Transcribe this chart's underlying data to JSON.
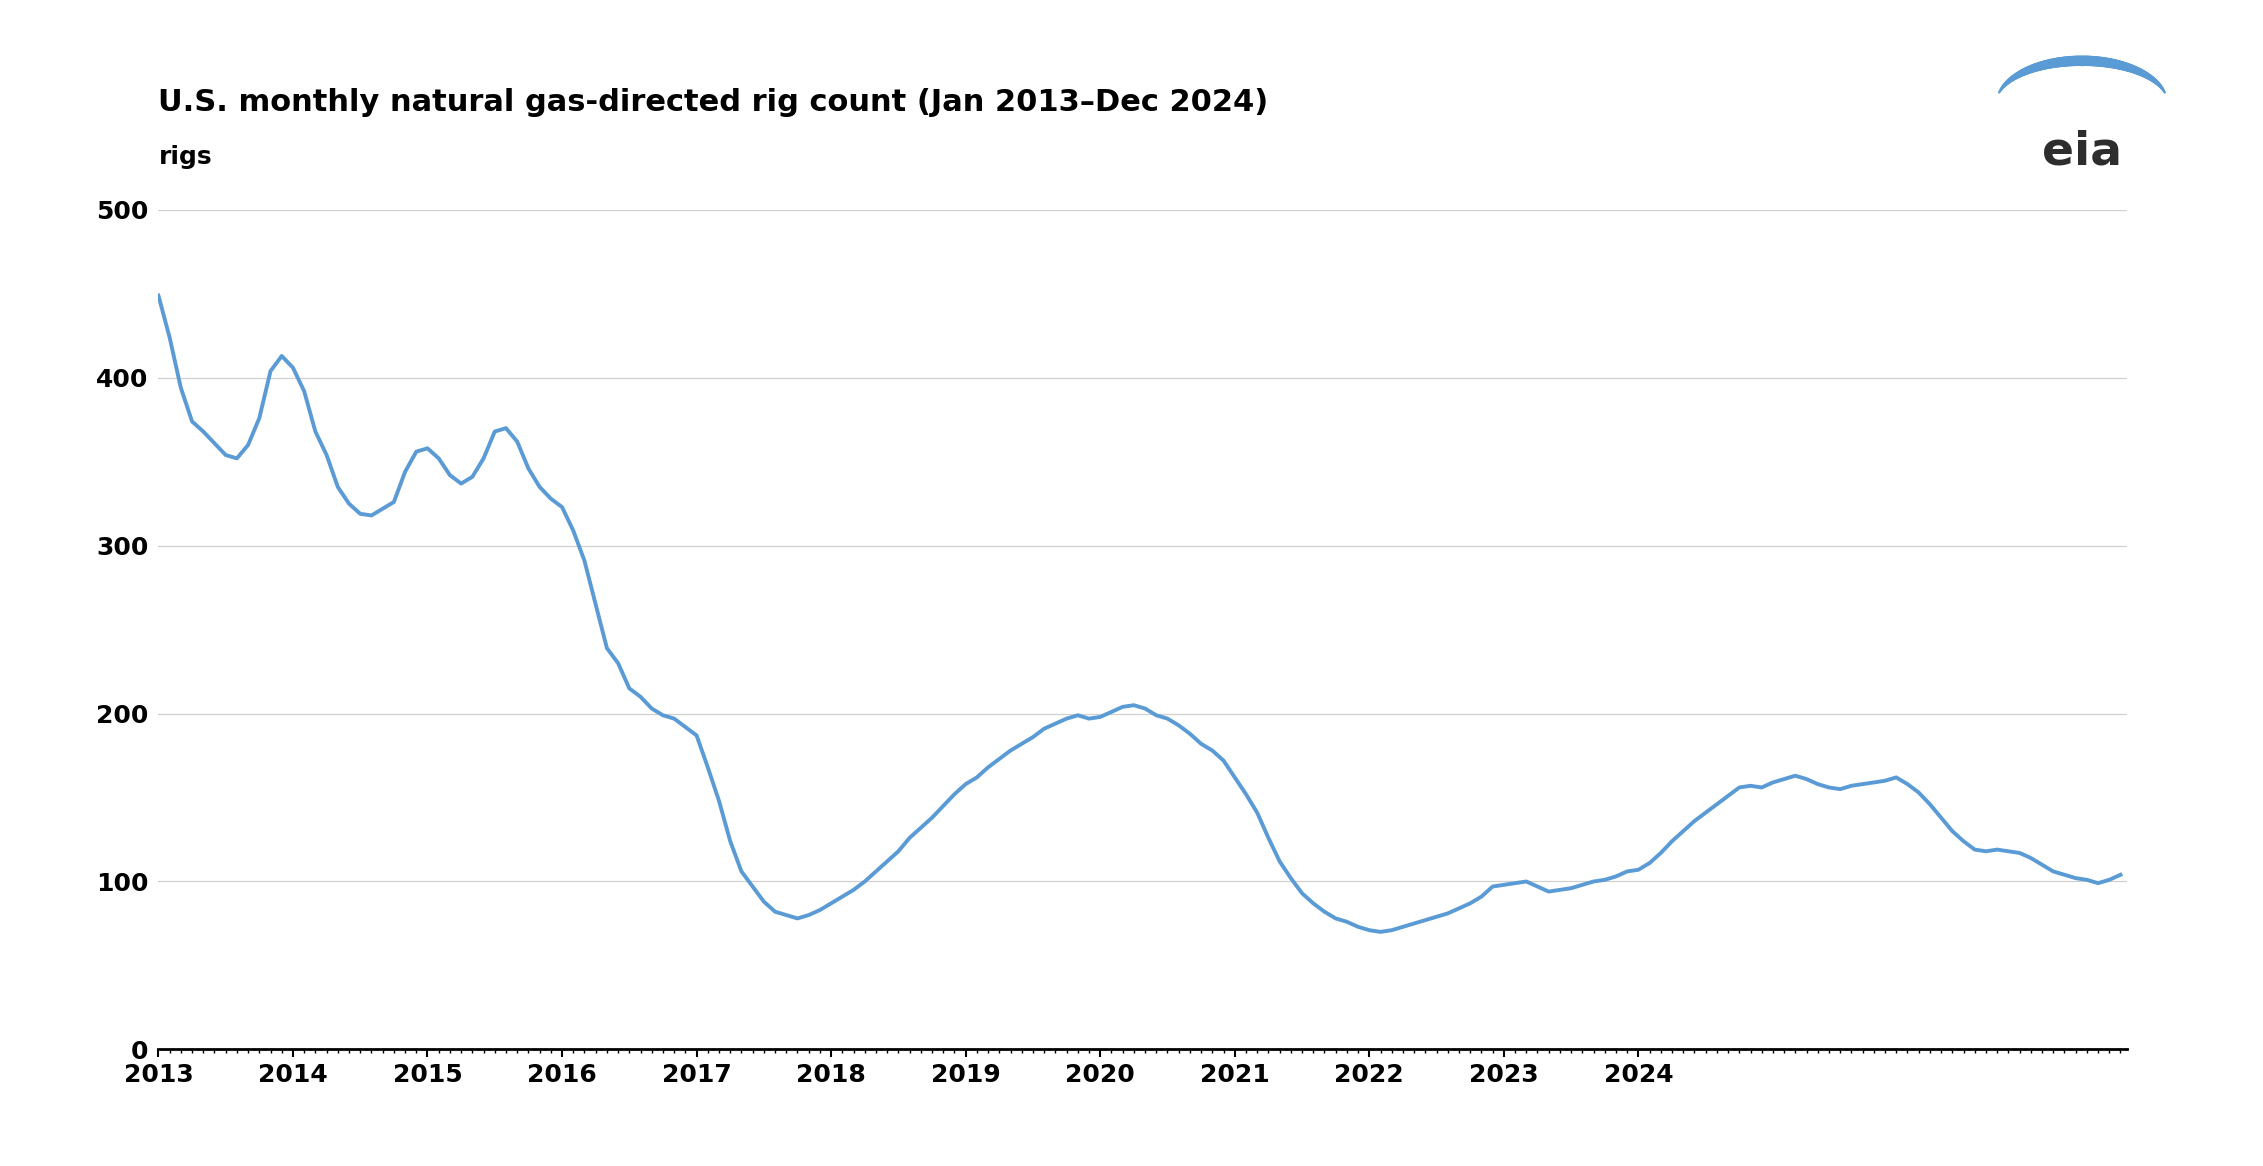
{
  "title": "U.S. monthly natural gas-directed rig count (Jan 2013–Dec 2024)",
  "ylabel": "rigs",
  "line_color": "#5B9BD5",
  "background_color": "#ffffff",
  "grid_color": "#d0d0d0",
  "ylim": [
    0,
    500
  ],
  "yticks": [
    0,
    100,
    200,
    300,
    400,
    500
  ],
  "title_fontsize": 22,
  "ylabel_fontsize": 18,
  "tick_fontsize": 18,
  "values": [
    449,
    424,
    394,
    374,
    368,
    361,
    354,
    352,
    360,
    376,
    404,
    413,
    406,
    392,
    368,
    354,
    335,
    325,
    319,
    318,
    322,
    326,
    344,
    356,
    358,
    352,
    342,
    337,
    341,
    352,
    368,
    370,
    362,
    346,
    335,
    328,
    323,
    309,
    291,
    265,
    239,
    230,
    215,
    210,
    203,
    199,
    197,
    192,
    187,
    168,
    148,
    124,
    106,
    97,
    88,
    82,
    80,
    78,
    80,
    83,
    87,
    91,
    95,
    100,
    106,
    112,
    118,
    126,
    132,
    138,
    145,
    152,
    158,
    162,
    168,
    173,
    178,
    182,
    186,
    191,
    194,
    197,
    199,
    197,
    198,
    201,
    204,
    205,
    203,
    199,
    197,
    193,
    188,
    182,
    178,
    172,
    162,
    152,
    141,
    126,
    112,
    102,
    93,
    87,
    82,
    78,
    76,
    73,
    71,
    70,
    71,
    73,
    75,
    77,
    79,
    81,
    84,
    87,
    91,
    97,
    98,
    99,
    100,
    97,
    94,
    95,
    96,
    98,
    100,
    101,
    103,
    106,
    107,
    111,
    117,
    124,
    130,
    136,
    141,
    146,
    151,
    156,
    157,
    156,
    159,
    161,
    163,
    161,
    158,
    156,
    155,
    157,
    158,
    159,
    160,
    162,
    158,
    153,
    146,
    138,
    130,
    124,
    119,
    118,
    119,
    118,
    117,
    114,
    110,
    106,
    104,
    102,
    101,
    99,
    101,
    104
  ],
  "xticklabels": [
    "2013",
    "2014",
    "2015",
    "2016",
    "2017",
    "2018",
    "2019",
    "2020",
    "2021",
    "2022",
    "2023",
    "2024"
  ]
}
